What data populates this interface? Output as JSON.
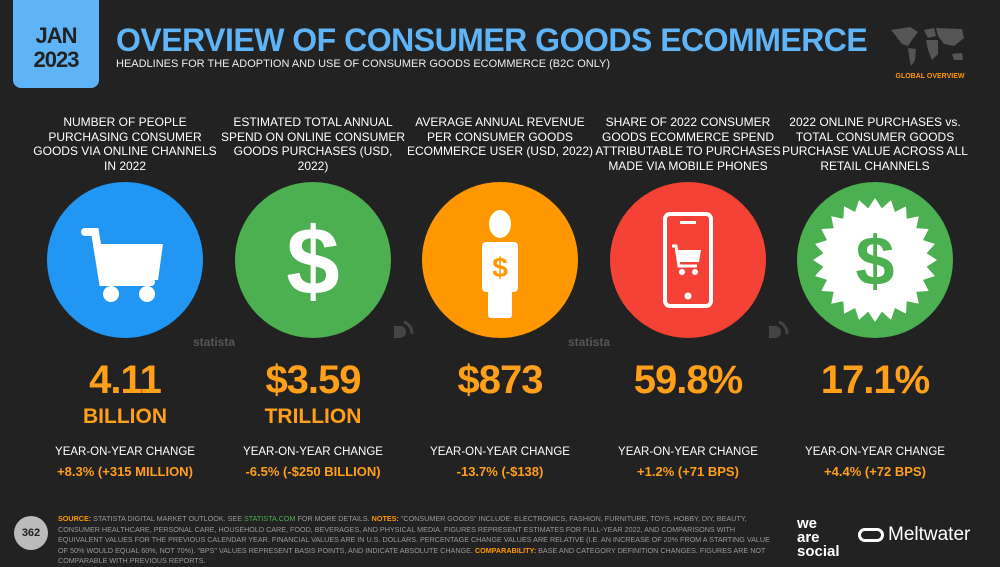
{
  "header": {
    "date_month": "JAN",
    "date_year": "2023",
    "title": "OVERVIEW OF CONSUMER GOODS ECOMMERCE",
    "subtitle": "HEADLINES FOR THE ADOPTION AND USE OF CONSUMER GOODS ECOMMERCE (B2C ONLY)",
    "region_label": "GLOBAL OVERVIEW"
  },
  "columns": [
    {
      "label": "NUMBER OF PEOPLE PURCHASING CONSUMER GOODS VIA ONLINE CHANNELS IN 2022",
      "icon": "shopping-cart-icon",
      "color": "#2196f3",
      "value": "4.11",
      "unit": "BILLION",
      "yoy_label": "YEAR-ON-YEAR CHANGE",
      "yoy": "+8.3% (+315 MILLION)"
    },
    {
      "label": "ESTIMATED TOTAL ANNUAL SPEND ON ONLINE CONSUMER GOODS PURCHASES (USD, 2022)",
      "icon": "dollar-icon",
      "color": "#4caf50",
      "value": "$3.59",
      "unit": "TRILLION",
      "yoy_label": "YEAR-ON-YEAR CHANGE",
      "yoy": "-6.5% (-$250 BILLION)"
    },
    {
      "label": "AVERAGE ANNUAL REVENUE PER CONSUMER GOODS ECOMMERCE USER (USD, 2022)",
      "icon": "person-dollar-icon",
      "color": "#ff9800",
      "value": "$873",
      "unit": "",
      "yoy_label": "YEAR-ON-YEAR CHANGE",
      "yoy": "-13.7% (-$138)"
    },
    {
      "label": "SHARE OF 2022 CONSUMER GOODS ECOMMERCE SPEND ATTRIBUTABLE TO PURCHASES MADE VIA MOBILE PHONES",
      "icon": "mobile-cart-icon",
      "color": "#f44336",
      "value": "59.8%",
      "unit": "",
      "yoy_label": "YEAR-ON-YEAR CHANGE",
      "yoy": "+1.2% (+71 BPS)"
    },
    {
      "label": "2022 ONLINE PURCHASES vs. TOTAL CONSUMER GOODS PURCHASE VALUE ACROSS ALL RETAIL CHANNELS",
      "icon": "dollar-badge-icon",
      "color": "#4caf50",
      "value": "17.1%",
      "unit": "",
      "yoy_label": "YEAR-ON-YEAR CHANGE",
      "yoy": "+4.4% (+72 BPS)"
    }
  ],
  "watermarks": [
    "statista",
    "statista"
  ],
  "footer": {
    "source_label": "SOURCE:",
    "source_text": "STATISTA DIGITAL MARKET OUTLOOK. SEE",
    "link": "STATISTA.COM",
    "source_tail": "FOR MORE DETAILS.",
    "notes_label": "NOTES:",
    "notes_text": "\"CONSUMER GOODS\" INCLUDE: ELECTRONICS, FASHION, FURNITURE, TOYS, HOBBY, DIY, BEAUTY, CONSUMER HEALTHCARE, PERSONAL CARE, HOUSEHOLD CARE, FOOD, BEVERAGES, AND PHYSICAL MEDIA. FIGURES REPRESENT ESTIMATES FOR FULL-YEAR 2022, AND COMPARISONS WITH EQUIVALENT VALUES FOR THE PREVIOUS CALENDAR YEAR. FINANCIAL VALUES ARE IN U.S. DOLLARS. PERCENTAGE CHANGE VALUES ARE RELATIVE (I.E. AN INCREASE OF 20% FROM A STARTING VALUE OF 50% WOULD EQUAL 60%, NOT 70%). \"BPS\" VALUES REPRESENT BASIS POINTS, AND INDICATE ABSOLUTE CHANGE.",
    "comparability_label": "COMPARABILITY:",
    "comparability_text": "BASE AND CATEGORY DEFINITION CHANGES. FIGURES ARE NOT COMPARABLE WITH PREVIOUS REPORTS.",
    "page_number": "362",
    "brand1": "we are social",
    "brand2": "Meltwater"
  }
}
